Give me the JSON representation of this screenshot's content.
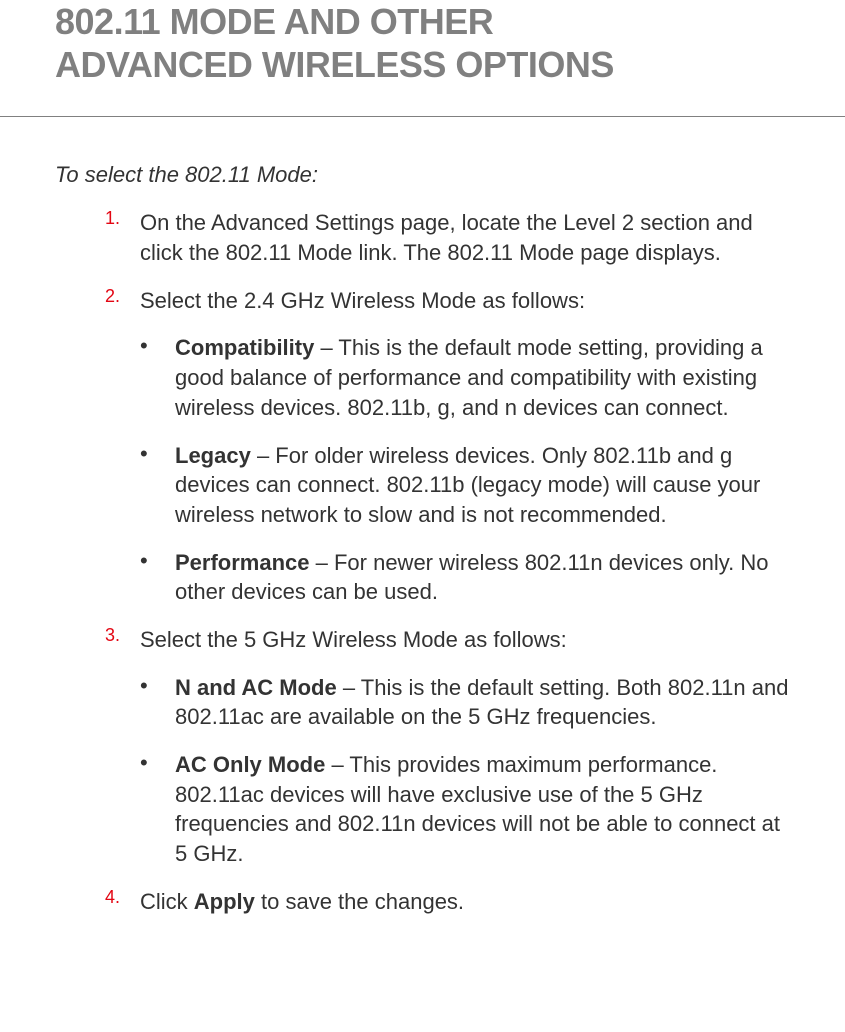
{
  "title_line1": "802.11 MODE AND OTHER",
  "title_line2": "ADVANCED WIRELESS OPTIONS",
  "intro": "To select the 802.11 Mode:",
  "step1": {
    "number": "1.",
    "text": "On the Advanced Settings page, locate the Level 2 section and click the 802.11 Mode link. The 802.11 Mode page displays."
  },
  "step2": {
    "number": "2.",
    "text": "Select the 2.4 GHz Wireless Mode as follows:"
  },
  "bullet2a": {
    "bold": "Compatibility",
    "text": " – This is the default mode setting, providing a good balance of performance and compatibility with existing wireless devices. 802.11b, g, and n devices can connect."
  },
  "bullet2b": {
    "bold": "Legacy",
    "text": " – For older wireless devices. Only 802.11b and g devices can connect.  802.11b (legacy mode) will cause your wireless network to slow and is not recommended."
  },
  "bullet2c": {
    "bold": "Performance",
    "text": " – For newer wireless 802.11n devices only. No other devices can be used."
  },
  "step3": {
    "number": "3.",
    "text": "Select the 5 GHz Wireless Mode as follows:"
  },
  "bullet3a": {
    "bold": "N and AC Mode",
    "text": " – This is the default setting. Both 802.11n and 802.11ac are available on the 5 GHz frequencies."
  },
  "bullet3b": {
    "bold": "AC Only Mode",
    "text": " – This provides maximum performance. 802.11ac devices will have exclusive use of the 5 GHz frequencies and 802.11n devices will not be able to connect at 5 GHz."
  },
  "step4": {
    "number": "4.",
    "text_before": "Click ",
    "bold": "Apply",
    "text_after": " to save the changes."
  }
}
